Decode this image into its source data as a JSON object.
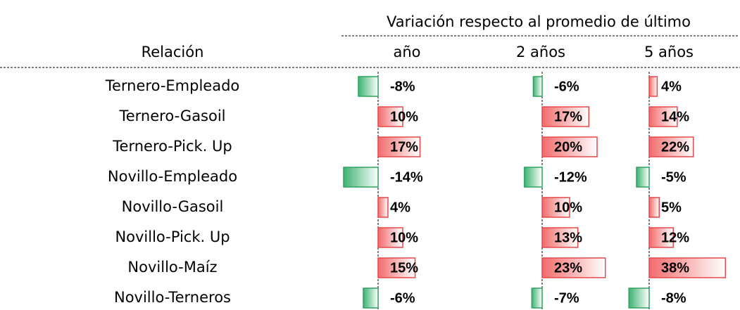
{
  "header": {
    "group": "Variación respecto al promedio de último",
    "relation": "Relación",
    "columns": [
      "año",
      "2 años",
      "5 años"
    ]
  },
  "rows": [
    {
      "label": "Ternero-Empleado",
      "values": [
        -8,
        -6,
        4
      ],
      "value_labels": [
        "-8%",
        "-6%",
        "4%"
      ]
    },
    {
      "label": "Ternero-Gasoil",
      "values": [
        10,
        17,
        14
      ],
      "value_labels": [
        "10%",
        "17%",
        "14%"
      ]
    },
    {
      "label": "Ternero-Pick. Up",
      "values": [
        17,
        20,
        22
      ],
      "value_labels": [
        "17%",
        "20%",
        "22%"
      ]
    },
    {
      "label": "Novillo-Empleado",
      "values": [
        -14,
        -12,
        -5
      ],
      "value_labels": [
        "-14%",
        "-12%",
        "-5%"
      ]
    },
    {
      "label": "Novillo-Gasoil",
      "values": [
        4,
        10,
        5
      ],
      "value_labels": [
        "4%",
        "10%",
        "5%"
      ]
    },
    {
      "label": "Novillo-Pick. Up",
      "values": [
        10,
        13,
        12
      ],
      "value_labels": [
        "10%",
        "13%",
        "12%"
      ]
    },
    {
      "label": "Novillo-Maíz",
      "values": [
        15,
        23,
        38
      ],
      "value_labels": [
        "15%",
        "23%",
        "38%"
      ]
    },
    {
      "label": "Novillo-Terneros",
      "values": [
        -6,
        -7,
        -8
      ],
      "value_labels": [
        "-6%",
        "-7%",
        "-8%"
      ]
    }
  ]
}
